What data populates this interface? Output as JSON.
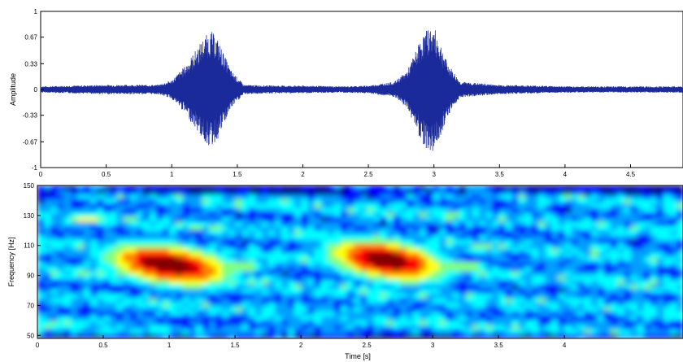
{
  "chart_data": [
    {
      "type": "line",
      "title": "",
      "xlabel": "",
      "ylabel": "Amplitude",
      "xlim": [
        0,
        4.9
      ],
      "ylim": [
        -1,
        1
      ],
      "x_ticks": [
        "0",
        "0.5",
        "1",
        "1.5",
        "2",
        "2.5",
        "3",
        "3.5",
        "4",
        "4.5"
      ],
      "y_ticks": [
        "1",
        "0.67",
        "0.33",
        "0",
        "-0.33",
        "-0.67",
        "-1"
      ],
      "grid": false,
      "line_color": "#1a2a9a",
      "series": [
        {
          "x": [
            0,
            0.5,
            0.9,
            1.0,
            1.1,
            1.2,
            1.25,
            1.3,
            1.35,
            1.4,
            1.45,
            1.55,
            1.8,
            2.0,
            2.3,
            2.5,
            2.7,
            2.8,
            2.85,
            2.9,
            2.95,
            3.0,
            3.05,
            3.1,
            3.2,
            3.5,
            3.8,
            4.0,
            4.5,
            4.9
          ],
          "values": [
            0.04,
            0.06,
            0.06,
            0.12,
            0.3,
            0.55,
            0.68,
            0.75,
            0.65,
            0.45,
            0.25,
            0.06,
            0.05,
            0.05,
            0.04,
            0.05,
            0.1,
            0.25,
            0.45,
            0.65,
            0.78,
            0.8,
            0.6,
            0.35,
            0.1,
            0.06,
            0.05,
            0.04,
            0.04,
            0.04
          ]
        }
      ]
    },
    {
      "type": "heatmap",
      "title": "",
      "xlabel": "Time [s]",
      "ylabel": "Frequency [Hz]",
      "xlim": [
        0,
        4.9
      ],
      "ylim": [
        48,
        150
      ],
      "x_ticks": [
        "0",
        "0.5",
        "1",
        "1.5",
        "2",
        "2.5",
        "3",
        "3.5",
        "4"
      ],
      "y_ticks": [
        "150",
        "130",
        "110",
        "90",
        "70",
        "50"
      ],
      "colormap": [
        "#00008f",
        "#0000ff",
        "#00a0ff",
        "#00ffff",
        "#80ff80",
        "#ffff00",
        "#ff8000",
        "#ff0000",
        "#800000"
      ],
      "hot_regions": [
        {
          "x": [
            0.65,
            1.5
          ],
          "y": [
            78,
            108
          ],
          "peak": [
            1.0,
            97
          ]
        },
        {
          "x": [
            2.35,
            3.15
          ],
          "y": [
            78,
            108
          ],
          "peak": [
            2.65,
            100
          ]
        }
      ],
      "warm_streaks": [
        {
          "x": [
            1.35,
            1.7
          ],
          "y": 96
        },
        {
          "x": [
            3.0,
            3.4
          ],
          "y": 96
        },
        {
          "x": [
            0.2,
            0.55
          ],
          "y": 128
        }
      ]
    }
  ]
}
